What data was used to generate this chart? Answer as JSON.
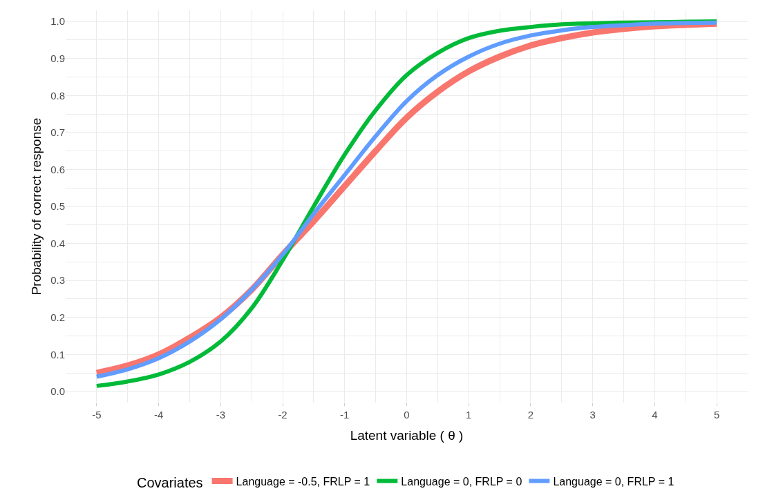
{
  "chart_data": {
    "type": "line",
    "xlabel": "Latent variable ( θ )",
    "ylabel": "Probability of correct response",
    "legend_title": "Covariates",
    "x": [
      -5,
      -4.5,
      -4,
      -3.5,
      -3,
      -2.5,
      -2,
      -1.5,
      -1,
      -0.5,
      0,
      0.5,
      1,
      1.5,
      2,
      2.5,
      3,
      3.5,
      4,
      4.5,
      5
    ],
    "series": [
      {
        "name": "Language = -0.5, FRLP = 1",
        "color": "#f8766d",
        "values": [
          0.05,
          0.07,
          0.1,
          0.145,
          0.2,
          0.275,
          0.37,
          0.46,
          0.555,
          0.65,
          0.74,
          0.81,
          0.865,
          0.905,
          0.935,
          0.955,
          0.97,
          0.98,
          0.987,
          0.991,
          0.994
        ]
      },
      {
        "name": "Language = 0, FRLP = 0",
        "color": "#00ba38",
        "values": [
          0.015,
          0.027,
          0.046,
          0.08,
          0.135,
          0.225,
          0.355,
          0.5,
          0.64,
          0.76,
          0.855,
          0.915,
          0.955,
          0.975,
          0.985,
          0.992,
          0.995,
          0.997,
          0.998,
          0.999,
          1.0
        ]
      },
      {
        "name": "Language = 0, FRLP = 1",
        "color": "#619cff",
        "values": [
          0.04,
          0.06,
          0.09,
          0.135,
          0.195,
          0.275,
          0.37,
          0.48,
          0.585,
          0.69,
          0.785,
          0.855,
          0.905,
          0.94,
          0.962,
          0.976,
          0.985,
          0.99,
          0.994,
          0.996,
          0.997
        ]
      }
    ],
    "xlim": [
      -5.5,
      5.5
    ],
    "xticks": [
      -5,
      -4,
      -3,
      -2,
      -1,
      0,
      1,
      2,
      3,
      4,
      5
    ],
    "ylim": [
      -0.03,
      1.03
    ],
    "yticks": [
      {
        "value": 0,
        "label": "0.0"
      },
      0.1,
      0.2,
      0.3,
      0.4,
      0.5,
      0.6,
      0.7,
      0.8,
      0.9,
      {
        "value": 1,
        "label": "1.0"
      }
    ],
    "grid": true,
    "legend": "bottom",
    "line_style": "solid"
  }
}
